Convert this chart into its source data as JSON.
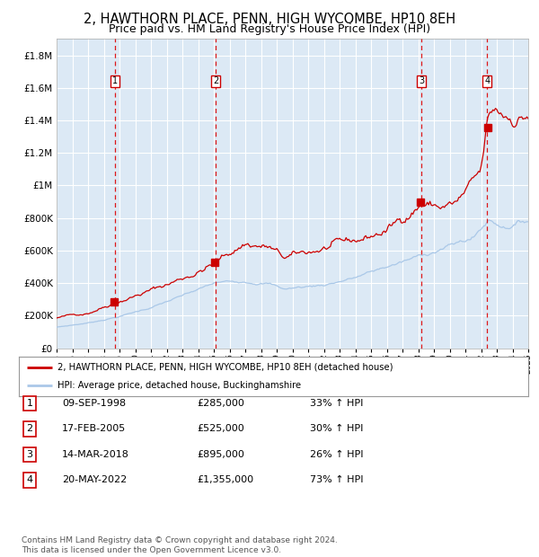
{
  "title": "2, HAWTHORN PLACE, PENN, HIGH WYCOMBE, HP10 8EH",
  "subtitle": "Price paid vs. HM Land Registry's House Price Index (HPI)",
  "title_fontsize": 10.5,
  "subtitle_fontsize": 9,
  "bg_color": "#dce9f5",
  "grid_color": "#ffffff",
  "red_line_color": "#cc0000",
  "blue_line_color": "#aac8e8",
  "ylim": [
    0,
    1900000
  ],
  "yticks": [
    0,
    200000,
    400000,
    600000,
    800000,
    1000000,
    1200000,
    1400000,
    1600000,
    1800000
  ],
  "ytick_labels": [
    "£0",
    "£200K",
    "£400K",
    "£600K",
    "£800K",
    "£1M",
    "£1.2M",
    "£1.4M",
    "£1.6M",
    "£1.8M"
  ],
  "xstart": 1995,
  "xend": 2025,
  "transactions": [
    {
      "num": 1,
      "date": "09-SEP-1998",
      "year": 1998.69,
      "price": 285000,
      "hpi_change": "33% ↑ HPI"
    },
    {
      "num": 2,
      "date": "17-FEB-2005",
      "year": 2005.12,
      "price": 525000,
      "hpi_change": "30% ↑ HPI"
    },
    {
      "num": 3,
      "date": "14-MAR-2018",
      "year": 2018.2,
      "price": 895000,
      "hpi_change": "26% ↑ HPI"
    },
    {
      "num": 4,
      "date": "20-MAY-2022",
      "year": 2022.38,
      "price": 1355000,
      "hpi_change": "73% ↑ HPI"
    }
  ],
  "legend_line1": "2, HAWTHORN PLACE, PENN, HIGH WYCOMBE, HP10 8EH (detached house)",
  "legend_line2": "HPI: Average price, detached house, Buckinghamshire",
  "footer": "Contains HM Land Registry data © Crown copyright and database right 2024.\nThis data is licensed under the Open Government Licence v3.0.",
  "table_rows": [
    [
      "1",
      "09-SEP-1998",
      "£285,000",
      "33% ↑ HPI"
    ],
    [
      "2",
      "17-FEB-2005",
      "£525,000",
      "30% ↑ HPI"
    ],
    [
      "3",
      "14-MAR-2018",
      "£895,000",
      "26% ↑ HPI"
    ],
    [
      "4",
      "20-MAY-2022",
      "£1,355,000",
      "73% ↑ HPI"
    ]
  ]
}
